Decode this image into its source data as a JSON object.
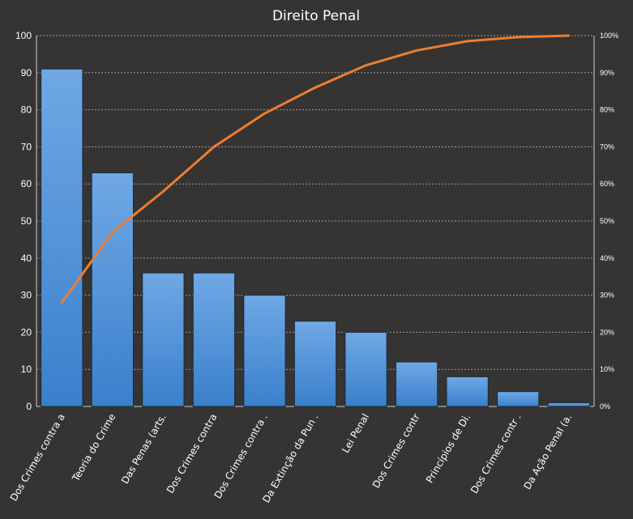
{
  "chart_data": {
    "type": "bar",
    "title": "Direito Penal",
    "categories": [
      "Dos Crimes contra a",
      "Teoria do Crime",
      "Das Penas (arts.",
      "Dos Crimes contra",
      "Dos Crimes contra .",
      "Da Extinção da Pun .",
      "Lei Penal",
      "Dos Crimes contr",
      "Princípios de Di.",
      "Dos Crimes contr .",
      "Da Ação Penal (a."
    ],
    "series": [
      {
        "type": "bar",
        "axis": "left",
        "color": "#4a90d9",
        "values": [
          91,
          63,
          36,
          36,
          30,
          23,
          20,
          12,
          8,
          4,
          1
        ]
      },
      {
        "type": "line",
        "axis": "right",
        "color": "#ed7d31",
        "values": [
          28,
          47,
          58,
          70,
          79,
          86,
          92,
          96,
          98.5,
          99.6,
          100
        ]
      }
    ],
    "ylim": [
      0,
      100
    ],
    "y_ticks": [
      "0",
      "10",
      "20",
      "30",
      "40",
      "50",
      "60",
      "70",
      "80",
      "90",
      "100"
    ],
    "y2lim": [
      0,
      100
    ],
    "y2_ticks": [
      "0%",
      "10%",
      "20%",
      "30%",
      "40%",
      "50%",
      "60%",
      "70%",
      "80%",
      "90%",
      "100%"
    ],
    "grid": true,
    "legend": "none"
  }
}
